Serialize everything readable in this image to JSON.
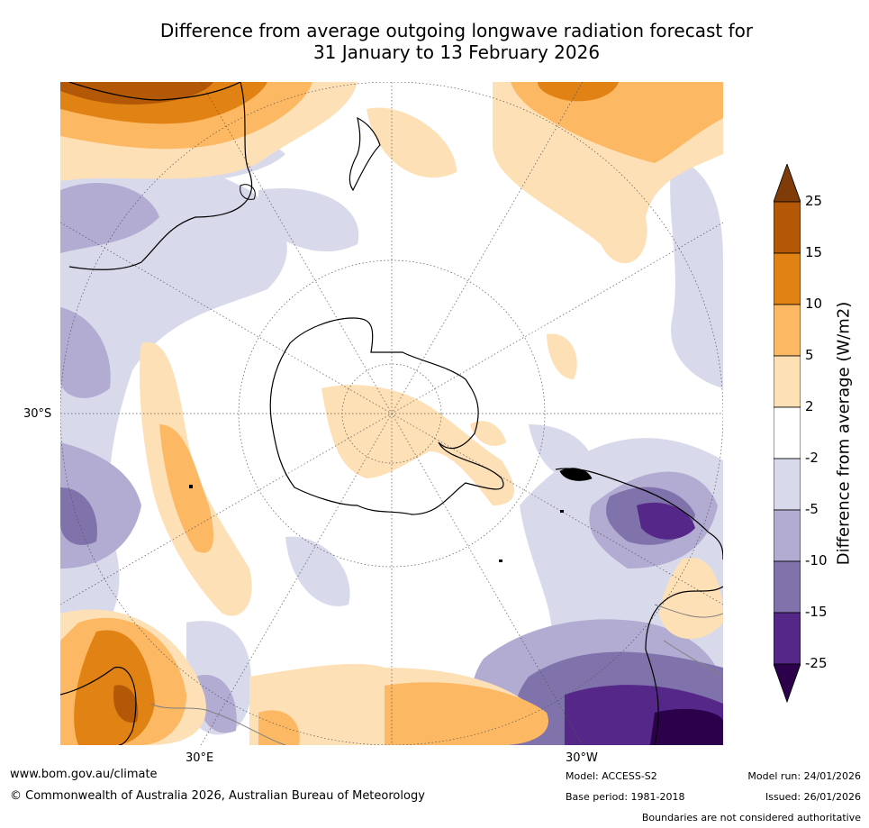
{
  "title_line1": "Difference from average outgoing longwave radiation forecast for",
  "title_line2": "31 January to 13 February 2026",
  "map": {
    "projection": "south-polar-stereographic",
    "lat_label": "30°S",
    "lon_labels": [
      "30°E",
      "30°W"
    ],
    "colors": {
      "ocean": "#ffffff",
      "coast": "#000000",
      "border": "#808080",
      "grid": "#555555"
    }
  },
  "colorbar": {
    "title": "Difference from average (W/m2)",
    "ticks": [
      "25",
      "15",
      "10",
      "5",
      "2",
      "-2",
      "-5",
      "-10",
      "-15",
      "-25"
    ],
    "colors": [
      "#7f3b08",
      "#b35806",
      "#e08214",
      "#fdb863",
      "#fee0b6",
      "#ffffff",
      "#d8daeb",
      "#b2abd2",
      "#8073ac",
      "#542788",
      "#2d004b"
    ]
  },
  "footer": {
    "website": "www.bom.gov.au/climate",
    "copyright": "© Commonwealth of Australia 2026, Australian Bureau of Meteorology",
    "model": "Model: ACCESS-S2",
    "base_period": "Base period: 1981-2018",
    "model_run": "Model run: 24/01/2026",
    "issued": "Issued: 26/01/2026",
    "disclaimer": "Boundaries are not considered authoritative"
  }
}
